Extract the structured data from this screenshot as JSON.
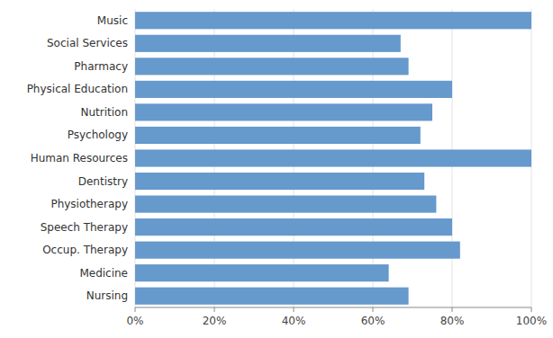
{
  "chart_data": {
    "type": "bar",
    "orientation": "horizontal",
    "categories": [
      "Music",
      "Social Services",
      "Pharmacy",
      "Physical Education",
      "Nutrition",
      "Psychology",
      "Human Resources",
      "Dentistry",
      "Physiotherapy",
      "Speech Therapy",
      "Occup. Therapy",
      "Medicine",
      "Nursing"
    ],
    "values": [
      100,
      67,
      69,
      80,
      75,
      72,
      100,
      73,
      76,
      80,
      82,
      64,
      69
    ],
    "color": "#6699CC",
    "xlim": [
      0,
      100
    ],
    "xticks": [
      {
        "value": 0,
        "label": "0%"
      },
      {
        "value": 20,
        "label": "20%"
      },
      {
        "value": 40,
        "label": "40%"
      },
      {
        "value": 60,
        "label": "60%"
      },
      {
        "value": 80,
        "label": "80%"
      },
      {
        "value": 100,
        "label": "100%"
      }
    ],
    "grid": true
  }
}
